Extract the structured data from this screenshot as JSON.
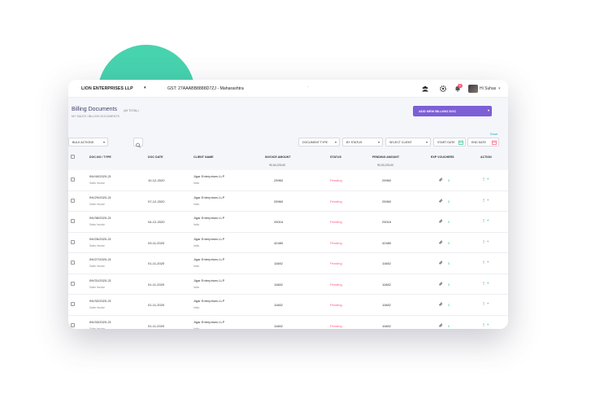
{
  "topbar": {
    "company": "LION ENTERPRISES LLP",
    "gst": "GST: 27AAABB8888D7ZJ - Maharashtra",
    "notification_count": "0",
    "user_greeting": "Hi Suhas"
  },
  "page": {
    "title": "Billing Documents",
    "total": "(49 TOTAL)",
    "breadcrumb": "MY SALES / BILLING DOCUMENTS",
    "add_button": "ADD NEW BILLING DOC"
  },
  "filters": {
    "bulk_actions": "BULK ACTIONS",
    "document_type": "DOCUMENT TYPE",
    "by_status": "BY STATUS",
    "select_client": "SELECT CLIENT",
    "start_date": "START DATE",
    "end_date": "END DATE",
    "reset": "Reset"
  },
  "table": {
    "headers": {
      "doc_no": "DOC.NO / TYPE",
      "doc_date": "DOC DATE",
      "client_name": "CLIENT NAME",
      "invoice_amount": "INVOICE AMOUNT",
      "status": "STATUS",
      "pending_amount": "PENDING AMOUNT",
      "exp_vouchers": "EXP VOUCHERS",
      "action": "ACTION"
    },
    "totals": {
      "invoice_amount": "₹2,63,376.00",
      "pending_amount": "₹2,63,376.00"
    },
    "rows": [
      {
        "doc_no": "INV40/2020-21",
        "type": "Sales Invoice",
        "date": "10-12-2020",
        "client": "Jigar Enterprises LLP",
        "country": "India",
        "invoice": "25960",
        "status": "Pending",
        "pending": "25960",
        "vouchers": "0"
      },
      {
        "doc_no": "INV29/2020-21",
        "type": "Sales Invoice",
        "date": "07-12-2020",
        "client": "Jigar Enterprises LLP",
        "country": "India",
        "invoice": "25960",
        "status": "Pending",
        "pending": "25960",
        "vouchers": "0"
      },
      {
        "doc_no": "INV38/2020-21",
        "type": "Sales Invoice",
        "date": "04-12-2020",
        "client": "Jigar Enterprises LLP",
        "country": "India",
        "invoice": "25016",
        "status": "Pending",
        "pending": "25016",
        "vouchers": "0"
      },
      {
        "doc_no": "INV26/2020-21",
        "type": "Sales Invoice",
        "date": "03-11-2020",
        "client": "Jigar Enterprises LLP",
        "country": "India",
        "invoice": "42480",
        "status": "Pending",
        "pending": "42480",
        "vouchers": "0"
      },
      {
        "doc_no": "INV27/2020-21",
        "type": "Sales Invoice",
        "date": "01-11-2020",
        "client": "Jigar Enterprises LLP",
        "country": "India",
        "invoice": "11682",
        "status": "Pending",
        "pending": "11682",
        "vouchers": "0"
      },
      {
        "doc_no": "INV31/2020-21",
        "type": "Sales Invoice",
        "date": "01-11-2020",
        "client": "Jigar Enterprises LLP",
        "country": "India",
        "invoice": "11682",
        "status": "Pending",
        "pending": "11682",
        "vouchers": "0"
      },
      {
        "doc_no": "INV32/2020-21",
        "type": "Sales Invoice",
        "date": "01-11-2020",
        "client": "Jigar Enterprises LLP",
        "country": "India",
        "invoice": "11682",
        "status": "Pending",
        "pending": "11682",
        "vouchers": "0"
      },
      {
        "doc_no": "INV33/2020-21",
        "type": "Sales Invoice",
        "date": "01-11-2020",
        "client": "Jigar Enterprises LLP",
        "country": "India",
        "invoice": "11682",
        "status": "Pending",
        "pending": "11682",
        "vouchers": "0"
      }
    ]
  },
  "icons": {
    "team": "team-icon",
    "settings": "gear-icon",
    "notifications": "bell-icon",
    "search": "search-icon",
    "calendar": "calendar-icon",
    "attachment": "paperclip-icon",
    "more": "kebab-menu-icon",
    "add": "plus-icon"
  },
  "colors": {
    "accent": "#7d5fd6",
    "pending": "#ff5a7a",
    "success": "#34c28f",
    "blob": "#47d3ae"
  }
}
